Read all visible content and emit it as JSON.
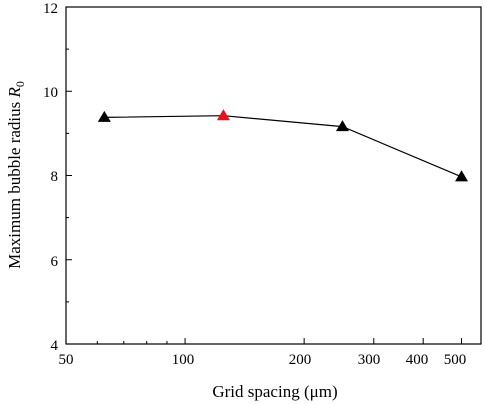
{
  "chart_data": {
    "type": "line",
    "title": "",
    "xlabel": "Grid spacing (μm)",
    "ylabel": "Maximum bubble radius",
    "ylabel_symbol": "R",
    "ylabel_subscript": "0",
    "x_scale": "log",
    "xlim": [
      50,
      560
    ],
    "ylim": [
      4,
      12
    ],
    "x_tick_values": [
      50,
      100,
      200,
      300,
      400,
      500
    ],
    "x_tick_labels": [
      "50",
      "100",
      "200",
      "300",
      "400",
      "500"
    ],
    "x_minor_ticks": [
      60,
      70,
      80,
      90
    ],
    "y_ticks": [
      4,
      6,
      8,
      10,
      12
    ],
    "grid": false,
    "series": [
      {
        "x": [
          62.5,
          125,
          250,
          500
        ],
        "y": [
          9.38,
          9.42,
          9.16,
          7.97
        ],
        "marker": "triangle",
        "color": "#000000",
        "marker_colors": [
          "#000000",
          "#e8121e",
          "#000000",
          "#000000"
        ]
      }
    ]
  }
}
